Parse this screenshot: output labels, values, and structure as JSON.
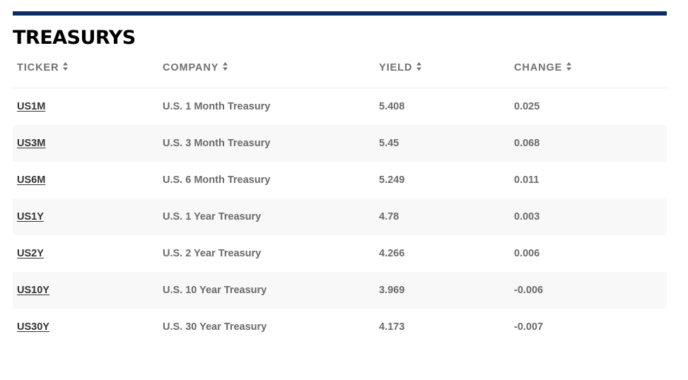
{
  "title": "TREASURYS",
  "columns": {
    "ticker": "TICKER",
    "company": "COMPANY",
    "yield": "YIELD",
    "change": "CHANGE"
  },
  "rows": [
    {
      "ticker": "US1M",
      "company": "U.S. 1 Month Treasury",
      "yield": "5.408",
      "change": "0.025"
    },
    {
      "ticker": "US3M",
      "company": "U.S. 3 Month Treasury",
      "yield": "5.45",
      "change": "0.068"
    },
    {
      "ticker": "US6M",
      "company": "U.S. 6 Month Treasury",
      "yield": "5.249",
      "change": "0.011"
    },
    {
      "ticker": "US1Y",
      "company": "U.S. 1 Year Treasury",
      "yield": "4.78",
      "change": "0.003"
    },
    {
      "ticker": "US2Y",
      "company": "U.S. 2 Year Treasury",
      "yield": "4.266",
      "change": "0.006"
    },
    {
      "ticker": "US10Y",
      "company": "U.S. 10 Year Treasury",
      "yield": "3.969",
      "change": "-0.006"
    },
    {
      "ticker": "US30Y",
      "company": "U.S. 30 Year Treasury",
      "yield": "4.173",
      "change": "-0.007"
    }
  ],
  "colors": {
    "accent_rule": "#0b2c63",
    "alt_row": "#f8f8f8"
  },
  "icons": {
    "sort": "sort-icon"
  }
}
